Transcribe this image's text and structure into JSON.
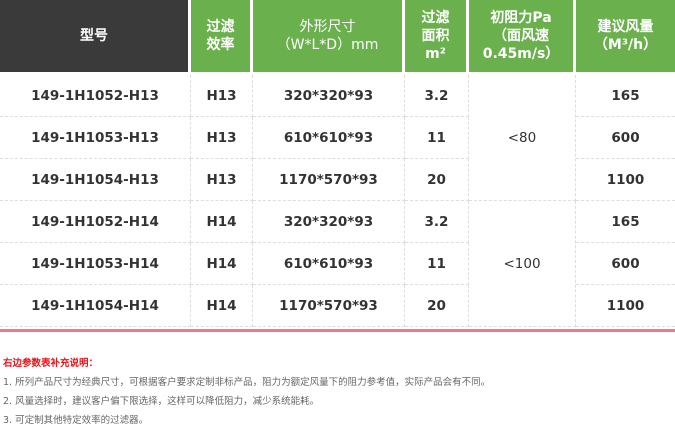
{
  "headers": [
    "型号",
    "过滤\n效率",
    "外形尺寸\n（W*L*D）mm",
    "过滤\n面积\nm²",
    "初阻力Pa\n（面风速\n0.45m/s）",
    "建议风量\n（M³/h）"
  ],
  "rows": [
    [
      "149-1H1052-H13",
      "H13",
      "320*320*93",
      "3.2",
      "165"
    ],
    [
      "149-1H1053-H13",
      "H13",
      "610*610*93",
      "11",
      "600"
    ],
    [
      "149-1H1054-H13",
      "H13",
      "1170*570*93",
      "20",
      "1100"
    ],
    [
      "149-1H1052-H14",
      "H14",
      "320*320*93",
      "3.2",
      "165"
    ],
    [
      "149-1H1053-H14",
      "H14",
      "610*610*93",
      "11",
      "600"
    ],
    [
      "149-1H1054-H14",
      "H14",
      "1170*570*93",
      "20",
      "1100"
    ]
  ],
  "resistance": [
    "<80",
    "<100"
  ],
  "notes": {
    "title": "右边参数表补充说明：",
    "items": [
      "1. 所列产品尺寸为经典尺寸，可根据客户要求定制非标产品，阻力为额定风量下的阻力参考值，实际产品会有不同。",
      "2. 风量选择时，建议客户偏下限选择，这样可以降低阻力，减少系统能耗。",
      "3. 可定制其他特定效率的过滤器。"
    ]
  },
  "colors": {
    "header_green": "#6ab04c",
    "header_dark": "#3a3a3a",
    "divider": "#f07a8c",
    "note_title": "#e8151b"
  }
}
